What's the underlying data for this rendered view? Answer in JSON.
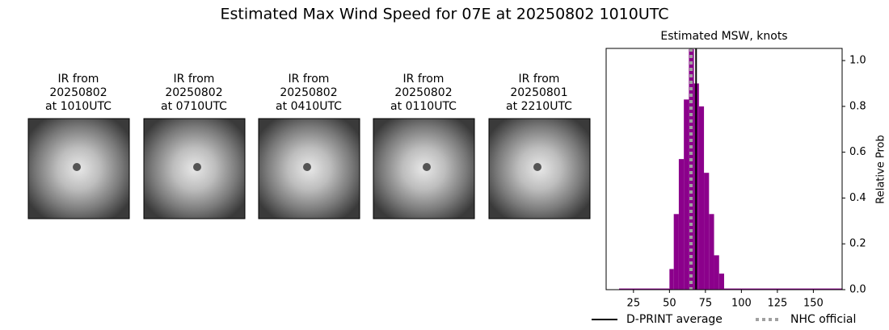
{
  "title": "Estimated Max Wind Speed for 07E at 20250802 1010UTC",
  "panels": [
    {
      "lines": [
        "IR from",
        "20250802",
        "at 1010UTC"
      ]
    },
    {
      "lines": [
        "IR from",
        "20250802",
        "at 0710UTC"
      ]
    },
    {
      "lines": [
        "IR from",
        "20250802",
        "at 0410UTC"
      ]
    },
    {
      "lines": [
        "IR from",
        "20250802",
        "at 0110UTC"
      ]
    },
    {
      "lines": [
        "IR from",
        "20250801",
        "at 2210UTC"
      ]
    }
  ],
  "chart_data": {
    "type": "histogram",
    "title": "Estimated MSW, knots",
    "y_label": "Relative Prob",
    "bins": [
      15,
      50,
      53,
      56.5,
      60,
      63.5,
      67,
      70.5,
      74,
      77.5,
      81,
      84.5,
      88,
      170
    ],
    "values": [
      0.005,
      0.09,
      0.33,
      0.57,
      0.83,
      1.05,
      0.9,
      0.8,
      0.51,
      0.33,
      0.15,
      0.07,
      0.005
    ],
    "color": "#8b008b",
    "xlim": [
      6,
      170
    ],
    "xticks": [
      25,
      50,
      75,
      100,
      125,
      150
    ],
    "ylim": [
      0,
      1.053
    ],
    "yticks": [
      {
        "value": 0,
        "label": "0.0"
      },
      {
        "value": 0.2,
        "label": "0.2"
      },
      {
        "value": 0.4,
        "label": "0.4"
      },
      {
        "value": 0.6,
        "label": "0.6"
      },
      {
        "value": 0.8,
        "label": "0.8"
      },
      {
        "value": 1,
        "label": "1.0"
      }
    ],
    "reference_lines": [
      {
        "name": "D-PRINT average",
        "value": 68.5,
        "color": "#000000",
        "style": "solid"
      },
      {
        "name": "NHC official",
        "value": 65,
        "color": "#a0a0a0",
        "style": "dotted"
      }
    ]
  }
}
